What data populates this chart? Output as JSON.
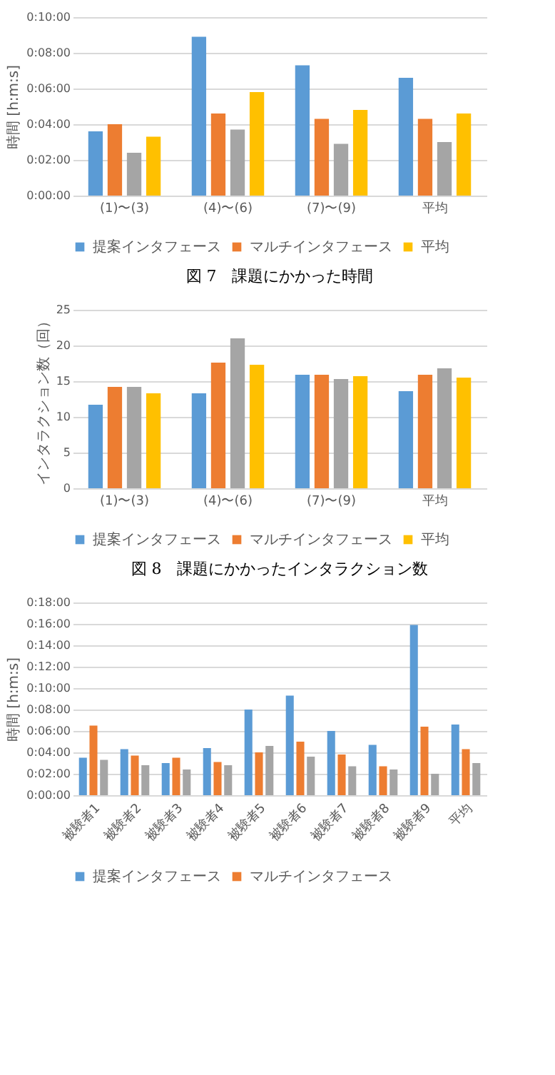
{
  "chart_data": [
    {
      "type": "bar",
      "title": "図 7　課題にかかった時間",
      "ylabel": "時間 [h:m:s]",
      "categories": [
        "(1)〜(3)",
        "(4)〜(6)",
        "(7)〜(9)",
        "平均"
      ],
      "series": [
        {
          "name": "提案インタフェース",
          "color": "#5b9bd5",
          "values": [
            3.6,
            8.9,
            7.3,
            6.6
          ]
        },
        {
          "name": "マルチインタフェース",
          "color": "#ed7d31",
          "values": [
            4.0,
            4.6,
            4.3,
            4.3
          ]
        },
        {
          "color": "#a5a5a5",
          "values": [
            2.4,
            3.7,
            2.9,
            3.0
          ]
        },
        {
          "name": "平均",
          "color": "#ffc000",
          "values": [
            3.3,
            5.8,
            4.8,
            4.6
          ]
        }
      ],
      "ylim": [
        0,
        10
      ],
      "yticks": [
        {
          "value": 0,
          "label": "0:00:00"
        },
        {
          "value": 2,
          "label": "0:02:00"
        },
        {
          "value": 4,
          "label": "0:04:00"
        },
        {
          "value": 6,
          "label": "0:06:00"
        },
        {
          "value": 8,
          "label": "0:08:00"
        },
        {
          "value": 10,
          "label": "0:10:00"
        }
      ],
      "grid": "y",
      "legend": "bottom"
    },
    {
      "type": "bar",
      "title": "図 8　課題にかかったインタラクション数",
      "ylabel": "インタラクション数（回）",
      "categories": [
        "(1)〜(3)",
        "(4)〜(6)",
        "(7)〜(9)",
        "平均"
      ],
      "series": [
        {
          "name": "提案インタフェース",
          "color": "#5b9bd5",
          "values": [
            11.7,
            13.3,
            15.9,
            13.6
          ]
        },
        {
          "name": "マルチインタフェース",
          "color": "#ed7d31",
          "values": [
            14.2,
            17.6,
            15.9,
            15.9
          ]
        },
        {
          "color": "#a5a5a5",
          "values": [
            14.2,
            21.0,
            15.3,
            16.8
          ]
        },
        {
          "name": "平均",
          "color": "#ffc000",
          "values": [
            13.3,
            17.3,
            15.7,
            15.5
          ]
        }
      ],
      "ylim": [
        0,
        25
      ],
      "yticks": [
        0,
        5,
        10,
        15,
        20,
        25
      ],
      "grid": "y",
      "legend": "bottom"
    },
    {
      "type": "bar",
      "ylabel": "時間 [h:m:s]",
      "categories": [
        "被験者1",
        "被験者2",
        "被験者3",
        "被験者4",
        "被験者5",
        "被験者6",
        "被験者7",
        "被験者8",
        "被験者9",
        "平均"
      ],
      "series": [
        {
          "name": "提案インタフェース",
          "color": "#5b9bd5",
          "values": [
            3.5,
            4.3,
            3.0,
            4.4,
            8.0,
            9.3,
            6.0,
            4.7,
            15.9,
            6.6
          ]
        },
        {
          "name": "マルチインタフェース",
          "color": "#ed7d31",
          "values": [
            6.5,
            3.7,
            3.5,
            3.1,
            4.0,
            5.0,
            3.8,
            2.7,
            6.4,
            4.3
          ]
        },
        {
          "color": "#a5a5a5",
          "values": [
            3.3,
            2.8,
            2.4,
            2.8,
            4.6,
            3.6,
            2.7,
            2.4,
            2.0,
            3.0
          ]
        }
      ],
      "ylim": [
        0,
        18
      ],
      "yticks": [
        {
          "value": 0,
          "label": "0:00:00"
        },
        {
          "value": 2,
          "label": "0:02:00"
        },
        {
          "value": 4,
          "label": "0:04:00"
        },
        {
          "value": 6,
          "label": "0:06:00"
        },
        {
          "value": 8,
          "label": "0:08:00"
        },
        {
          "value": 10,
          "label": "0:10:00"
        },
        {
          "value": 12,
          "label": "0:12:00"
        },
        {
          "value": 14,
          "label": "0:14:00"
        },
        {
          "value": 16,
          "label": "0:16:00"
        },
        {
          "value": 18,
          "label": "0:18:00"
        }
      ],
      "grid": "y",
      "legend": "bottom"
    }
  ]
}
